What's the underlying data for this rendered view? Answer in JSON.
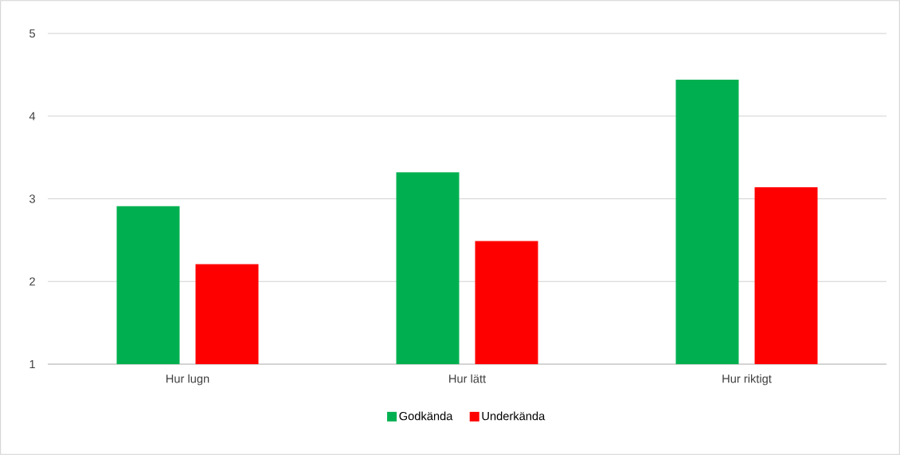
{
  "chart_data": {
    "type": "bar",
    "categories": [
      "Hur lugn",
      "Hur lätt",
      "Hur riktigt"
    ],
    "series": [
      {
        "name": "Godkända",
        "color": "#00b050",
        "values": [
          2.91,
          3.32,
          4.44
        ]
      },
      {
        "name": "Underkända",
        "color": "#ff0000",
        "values": [
          2.21,
          2.49,
          3.14
        ]
      }
    ],
    "ylim": [
      1,
      5
    ],
    "yticks": [
      1,
      2,
      3,
      4,
      5
    ],
    "grid": "y",
    "legend": "bottom"
  }
}
